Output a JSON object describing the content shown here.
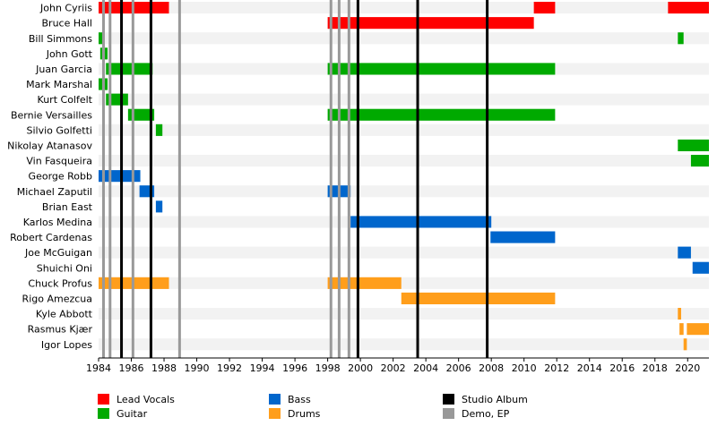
{
  "chart_data": {
    "type": "timeline",
    "x_axis": {
      "min": 1984,
      "max": 2021.3,
      "tick_step": 2,
      "tick_labels": [
        "1984",
        "1986",
        "1988",
        "1990",
        "1992",
        "1994",
        "1996",
        "1998",
        "2000",
        "2002",
        "2004",
        "2006",
        "2008",
        "2010",
        "2012",
        "2014",
        "2016",
        "2018",
        "2020"
      ]
    },
    "members": [
      "John Cyriis",
      "Bruce Hall",
      "Bill Simmons",
      "John Gott",
      "Juan Garcia",
      "Mark Marshal",
      "Kurt Colfelt",
      "Bernie Versailles",
      "Silvio Golfetti",
      "Nikolay Atanasov",
      "Vin Fasqueira",
      "George Robb",
      "Michael Zaputil",
      "Brian East",
      "Karlos Medina",
      "Robert Cardenas",
      "Joe McGuigan",
      "Shuichi Oni",
      "Chuck Profus",
      "Rigo Amezcua",
      "Kyle Abbott",
      "Rasmus Kjær",
      "Igor Lopes"
    ],
    "roles": {
      "vocals": {
        "label": "Lead Vocals",
        "color": "#ff0000"
      },
      "guitar": {
        "label": "Guitar",
        "color": "#00aa00"
      },
      "bass": {
        "label": "Bass",
        "color": "#0066cc"
      },
      "drums": {
        "label": "Drums",
        "color": "#ff9e1b"
      }
    },
    "bars": [
      {
        "member": "John Cyriis",
        "role": "vocals",
        "start": 1984.0,
        "end": 1988.3
      },
      {
        "member": "John Cyriis",
        "role": "vocals",
        "start": 2010.6,
        "end": 2011.9
      },
      {
        "member": "John Cyriis",
        "role": "vocals",
        "start": 2018.8,
        "end": 2021.3
      },
      {
        "member": "Bruce Hall",
        "role": "vocals",
        "start": 1998.0,
        "end": 2010.6
      },
      {
        "member": "Bill Simmons",
        "role": "guitar",
        "start": 1984.0,
        "end": 1984.25
      },
      {
        "member": "Bill Simmons",
        "role": "guitar",
        "start": 2019.4,
        "end": 2019.75
      },
      {
        "member": "John Gott",
        "role": "guitar",
        "start": 1984.1,
        "end": 1984.55
      },
      {
        "member": "Juan Garcia",
        "role": "guitar",
        "start": 1984.45,
        "end": 1987.3
      },
      {
        "member": "Juan Garcia",
        "role": "guitar",
        "start": 1998.0,
        "end": 2011.9
      },
      {
        "member": "Mark Marshal",
        "role": "guitar",
        "start": 1984.0,
        "end": 1984.55
      },
      {
        "member": "Kurt Colfelt",
        "role": "guitar",
        "start": 1984.45,
        "end": 1985.8
      },
      {
        "member": "Bernie Versailles",
        "role": "guitar",
        "start": 1985.8,
        "end": 1987.4
      },
      {
        "member": "Bernie Versailles",
        "role": "guitar",
        "start": 1998.0,
        "end": 2011.9
      },
      {
        "member": "Silvio Golfetti",
        "role": "guitar",
        "start": 1987.5,
        "end": 1987.9
      },
      {
        "member": "Nikolay Atanasov",
        "role": "guitar",
        "start": 2019.4,
        "end": 2021.3
      },
      {
        "member": "Vin Fasqueira",
        "role": "guitar",
        "start": 2020.2,
        "end": 2021.3
      },
      {
        "member": "George Robb",
        "role": "bass",
        "start": 1984.0,
        "end": 1986.55
      },
      {
        "member": "Michael Zaputil",
        "role": "bass",
        "start": 1986.5,
        "end": 1987.4
      },
      {
        "member": "Michael Zaputil",
        "role": "bass",
        "start": 1998.0,
        "end": 1999.4
      },
      {
        "member": "Brian East",
        "role": "bass",
        "start": 1987.5,
        "end": 1987.9
      },
      {
        "member": "Karlos Medina",
        "role": "bass",
        "start": 1999.4,
        "end": 2008.0
      },
      {
        "member": "Robert Cardenas",
        "role": "bass",
        "start": 2007.95,
        "end": 2011.9
      },
      {
        "member": "Joe McGuigan",
        "role": "bass",
        "start": 2019.4,
        "end": 2020.2
      },
      {
        "member": "Shuichi Oni",
        "role": "bass",
        "start": 2020.3,
        "end": 2021.3
      },
      {
        "member": "Chuck Profus",
        "role": "drums",
        "start": 1984.0,
        "end": 1988.3
      },
      {
        "member": "Chuck Profus",
        "role": "drums",
        "start": 1998.0,
        "end": 2002.5
      },
      {
        "member": "Rigo Amezcua",
        "role": "drums",
        "start": 2002.5,
        "end": 2011.9
      },
      {
        "member": "Kyle Abbott",
        "role": "drums",
        "start": 2019.4,
        "end": 2019.6
      },
      {
        "member": "Rasmus Kjær",
        "role": "drums",
        "start": 2019.5,
        "end": 2019.75
      },
      {
        "member": "Rasmus Kjær",
        "role": "drums",
        "start": 2019.95,
        "end": 2021.3
      },
      {
        "member": "Igor Lopes",
        "role": "drums",
        "start": 2019.75,
        "end": 2019.95
      }
    ],
    "release_lines": {
      "studio": {
        "label": "Studio Album",
        "color": "#000000",
        "years": [
          1985.4,
          1987.2,
          1999.85,
          2003.5,
          2007.75
        ]
      },
      "demo": {
        "label": "Demo, EP",
        "color": "#999999",
        "years": [
          1984.3,
          1984.7,
          1986.1,
          1988.95,
          1998.2,
          1998.7,
          1999.3
        ]
      }
    },
    "legend": {
      "position": "bottom",
      "items": [
        {
          "label": "Lead Vocals",
          "color": "#ff0000"
        },
        {
          "label": "Guitar",
          "color": "#00aa00"
        },
        {
          "label": "Bass",
          "color": "#0066cc"
        },
        {
          "label": "Drums",
          "color": "#ff9e1b"
        },
        {
          "label": "Studio Album",
          "color": "#000000"
        },
        {
          "label": "Demo, EP",
          "color": "#999999"
        }
      ]
    },
    "grid": "alternating row stripes"
  }
}
